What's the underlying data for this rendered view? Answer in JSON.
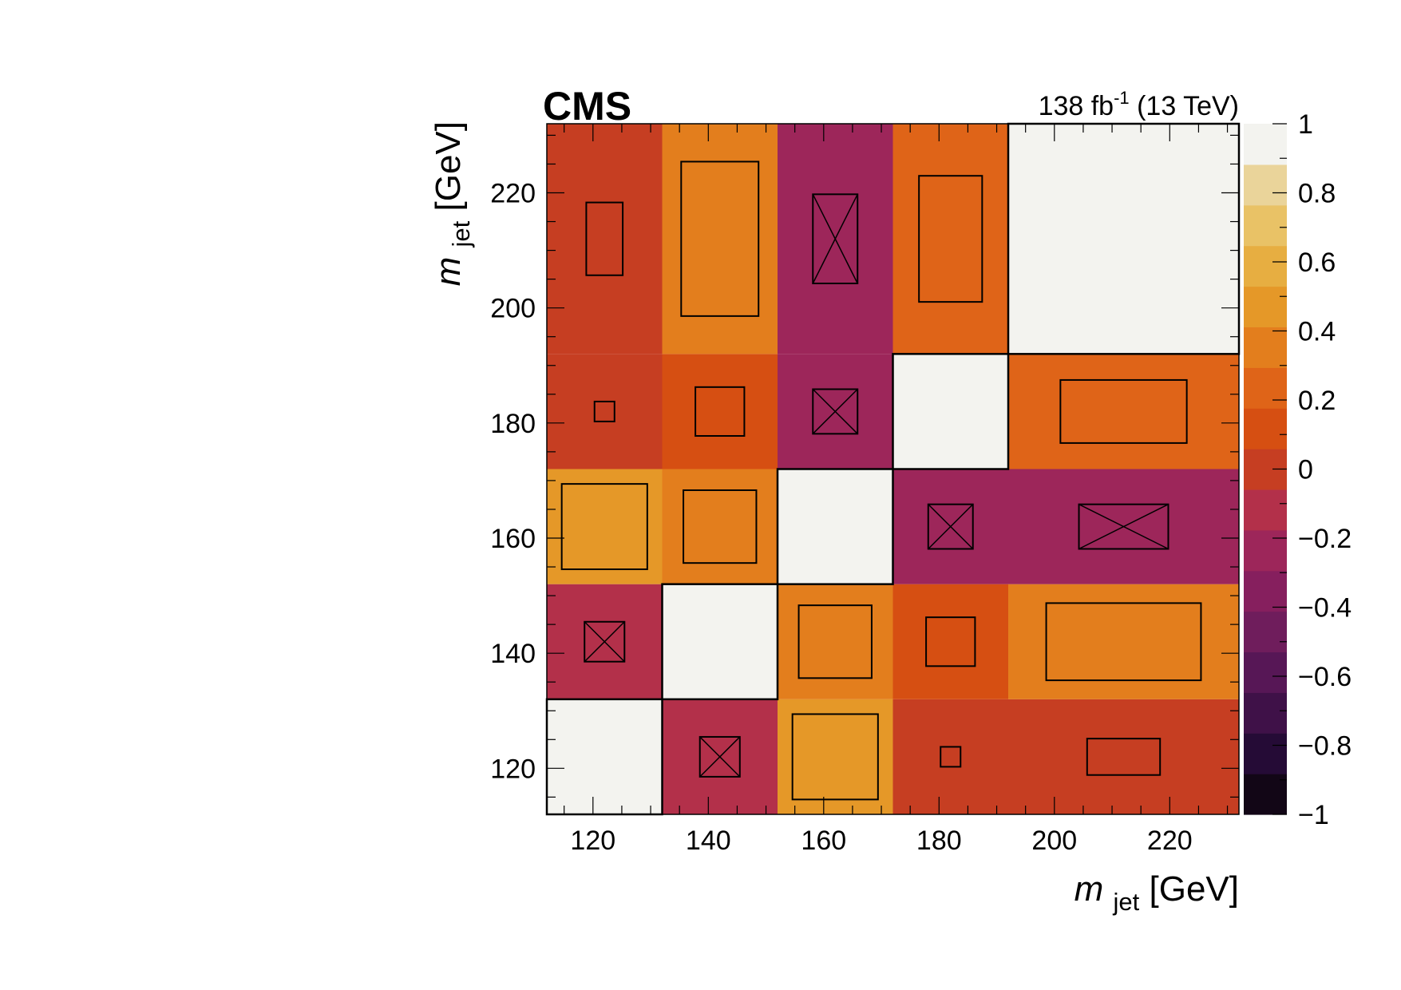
{
  "header": {
    "experiment": "CMS",
    "lumi_value": "138 fb",
    "lumi_exp": "-1",
    "energy": "(13 TeV)"
  },
  "axes": {
    "x_label_m": "m",
    "x_label_sub": "jet",
    "x_label_unit": "[GeV]",
    "y_label_m": "m",
    "y_label_sub": "jet",
    "y_label_unit": "[GeV]"
  },
  "chart_data": {
    "type": "heatmap",
    "x_bin_edges": [
      112,
      132,
      152,
      172,
      192,
      232
    ],
    "y_bin_edges": [
      112,
      132,
      152,
      172,
      192,
      232
    ],
    "x_ticks": [
      120,
      140,
      160,
      180,
      200,
      220
    ],
    "y_ticks": [
      120,
      140,
      160,
      180,
      200,
      220
    ],
    "xlim": [
      112,
      232
    ],
    "ylim": [
      112,
      232
    ],
    "zlim": [
      -1,
      1
    ],
    "colorbar_ticks": [
      1,
      0.8,
      0.6,
      0.4,
      0.2,
      0,
      -0.2,
      -0.4,
      -0.6,
      -0.8,
      -1
    ],
    "colorbar_tick_labels": [
      "1",
      "0.8",
      "0.6",
      "0.4",
      "0.2",
      "0",
      "−0.2",
      "−0.4",
      "−0.6",
      "−0.8",
      "−1"
    ],
    "palette": [
      "#120616",
      "#250b36",
      "#3f1148",
      "#571756",
      "#6f1d5c",
      "#861f5e",
      "#9d265a",
      "#b3304a",
      "#c63e22",
      "#d64f12",
      "#df6418",
      "#e37e1d",
      "#e59828",
      "#e7ae41",
      "#e9c266",
      "#ead49a",
      "#f3f3ef"
    ],
    "cell_value_note": "rows listed from lowest y-bin to highest; columns from lowest x-bin to highest",
    "values": [
      [
        1.0,
        -0.12,
        0.55,
        0.03,
        0.1
      ],
      [
        -0.12,
        1.0,
        0.4,
        0.18,
        0.45
      ],
      [
        0.55,
        0.4,
        1.0,
        -0.15,
        -0.15
      ],
      [
        0.03,
        0.18,
        -0.15,
        1.0,
        0.3
      ],
      [
        0.1,
        0.45,
        -0.15,
        0.3,
        1.0
      ]
    ]
  }
}
